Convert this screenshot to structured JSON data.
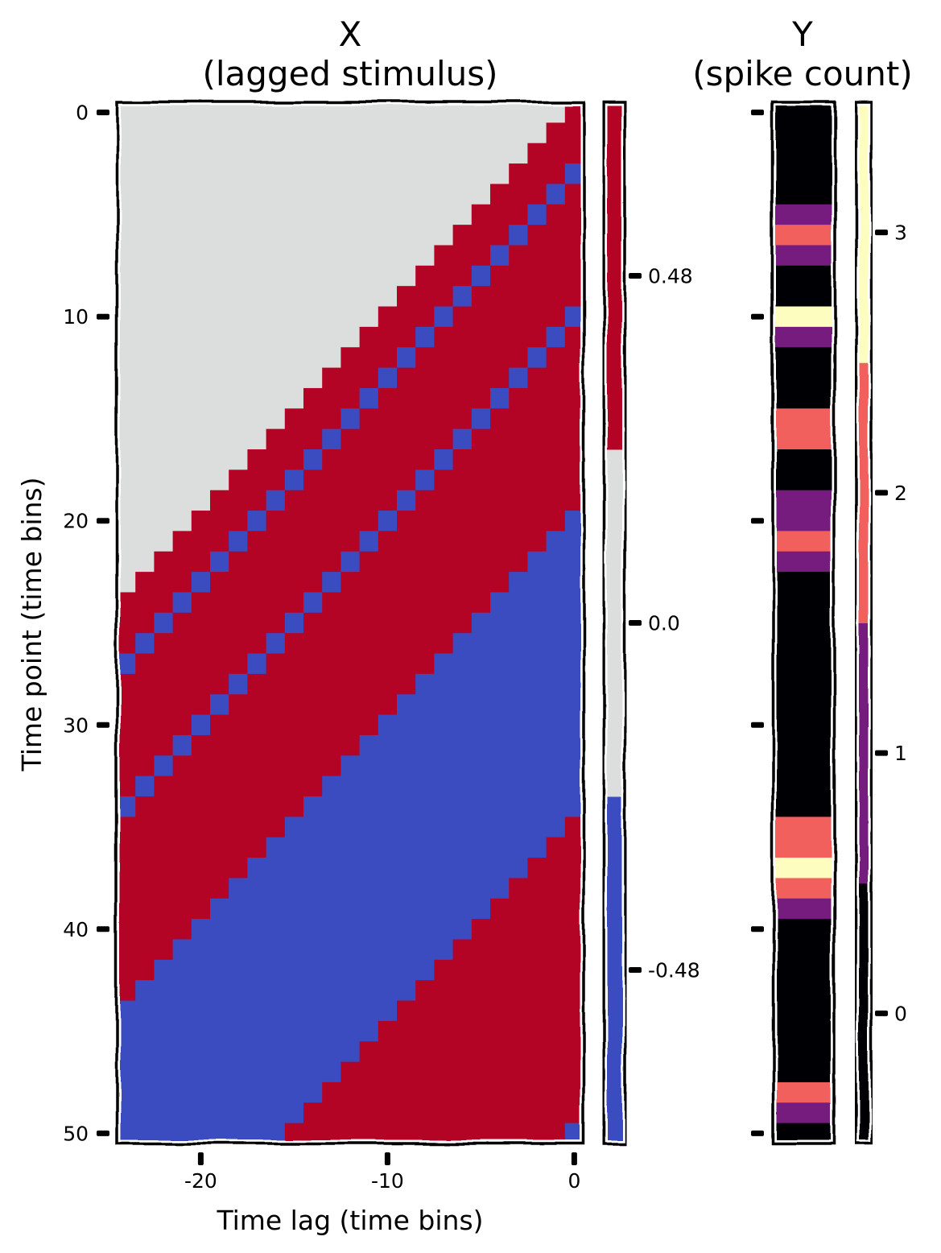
{
  "chart_data": [
    {
      "type": "heatmap",
      "title": "X",
      "subtitle": "(lagged stimulus)",
      "xlabel": "Time lag (time bins)",
      "ylabel": "Time point (time bins)",
      "x_range": [
        -24,
        0
      ],
      "y_range": [
        0,
        50
      ],
      "x_ticks": [
        -20,
        -10,
        0
      ],
      "x_tick_labels": [
        "-20",
        "-10",
        "0"
      ],
      "y_ticks": [
        0,
        10,
        20,
        30,
        40,
        50
      ],
      "y_tick_labels": [
        "0",
        "10",
        "20",
        "30",
        "40",
        "50"
      ],
      "stimulus": [
        1,
        1,
        1,
        -1,
        1,
        1,
        1,
        1,
        1,
        1,
        -1,
        1,
        1,
        1,
        1,
        1,
        1,
        1,
        1,
        1,
        -1,
        -1,
        -1,
        -1,
        -1,
        -1,
        -1,
        -1,
        -1,
        -1,
        -1,
        -1,
        -1,
        -1,
        -1,
        1,
        1,
        1,
        1,
        1,
        1,
        1,
        1,
        1,
        1,
        1,
        1,
        1,
        1,
        1,
        -1
      ],
      "cell_rule": "X[t][lag] = stimulus[t + lag] when t + lag >= 0, otherwise 0",
      "colorbar": {
        "ticks": [
          0.48,
          0.0,
          -0.48
        ],
        "tick_labels": [
          "0.48",
          "0.0",
          "-0.48"
        ],
        "range": [
          -0.72,
          0.72
        ],
        "levels": [
          {
            "value": 1,
            "color": "#b40426"
          },
          {
            "value": 0,
            "color": "#dcdddd"
          },
          {
            "value": -1,
            "color": "#3b4cc0"
          }
        ]
      }
    },
    {
      "type": "heatmap",
      "title": "Y",
      "subtitle": "(spike count)",
      "y_range": [
        0,
        50
      ],
      "values": [
        0,
        0,
        0,
        0,
        0,
        1,
        2,
        1,
        0,
        0,
        3,
        1,
        0,
        0,
        0,
        2,
        2,
        0,
        0,
        1,
        1,
        2,
        1,
        0,
        0,
        0,
        0,
        0,
        0,
        0,
        0,
        0,
        0,
        0,
        0,
        2,
        2,
        3,
        2,
        1,
        0,
        0,
        0,
        0,
        0,
        0,
        0,
        0,
        2,
        1,
        0
      ],
      "colorbar": {
        "ticks": [
          3,
          2,
          1,
          0
        ],
        "tick_labels": [
          "3",
          "2",
          "1",
          "0"
        ],
        "range": [
          -0.5,
          3.5
        ],
        "levels": [
          {
            "value": 0,
            "color": "#000004"
          },
          {
            "value": 1,
            "color": "#761c7e"
          },
          {
            "value": 2,
            "color": "#f1605d"
          },
          {
            "value": 3,
            "color": "#fcfdbf"
          }
        ]
      }
    }
  ]
}
